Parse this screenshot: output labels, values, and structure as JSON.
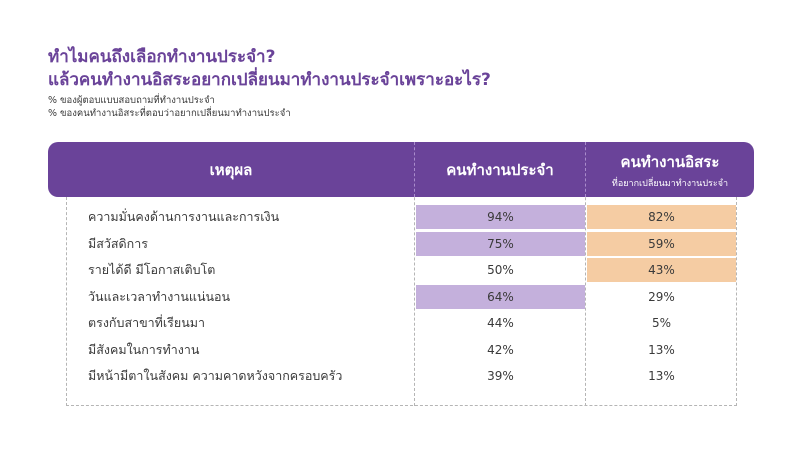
{
  "title": {
    "line1": "ทำไมคนถึงเลือกทำงานประจำ?",
    "line2": "แล้วคนทำงานอิสระอยากเปลี่ยนมาทำงานประจำเพราะอะไร?"
  },
  "notes": [
    "% ของผู้ตอบแบบสอบถามที่ทำงานประจำ",
    "% ของคนทำงานอิสระที่ตอบว่าอยากเปลี่ยนมาทำงานประจำ"
  ],
  "colors": {
    "accent": "#6a4399",
    "highlight_fulltime": "#c4b0dc",
    "highlight_freelance": "#f5cca3"
  },
  "chart_data": {
    "type": "table",
    "columns": {
      "reason": "เหตุผล",
      "fulltime": "คนทำงานประจำ",
      "freelance": "คนทำงานอิสระ",
      "freelance_sub": "ที่อยากเปลี่ยนมาทำงานประจำ"
    },
    "rows": [
      {
        "reason": "ความมั่นคงด้านการงานและการเงิน",
        "fulltime": "94%",
        "freelance": "82%",
        "hl_fulltime": true,
        "hl_freelance": true
      },
      {
        "reason": "มีสวัสดิการ",
        "fulltime": "75%",
        "freelance": "59%",
        "hl_fulltime": true,
        "hl_freelance": true
      },
      {
        "reason": "รายได้ดี มีโอกาสเติบโต",
        "fulltime": "50%",
        "freelance": "43%",
        "hl_fulltime": false,
        "hl_freelance": true
      },
      {
        "reason": "วันและเวลาทำงานแน่นอน",
        "fulltime": "64%",
        "freelance": "29%",
        "hl_fulltime": true,
        "hl_freelance": false
      },
      {
        "reason": "ตรงกับสาขาที่เรียนมา",
        "fulltime": "44%",
        "freelance": "5%",
        "hl_fulltime": false,
        "hl_freelance": false
      },
      {
        "reason": "มีสังคมในการทำงาน",
        "fulltime": "42%",
        "freelance": "13%",
        "hl_fulltime": false,
        "hl_freelance": false
      },
      {
        "reason": "มีหน้ามีตาในสังคม ความคาดหวังจากครอบครัว",
        "fulltime": "39%",
        "freelance": "13%",
        "hl_fulltime": false,
        "hl_freelance": false
      }
    ]
  }
}
